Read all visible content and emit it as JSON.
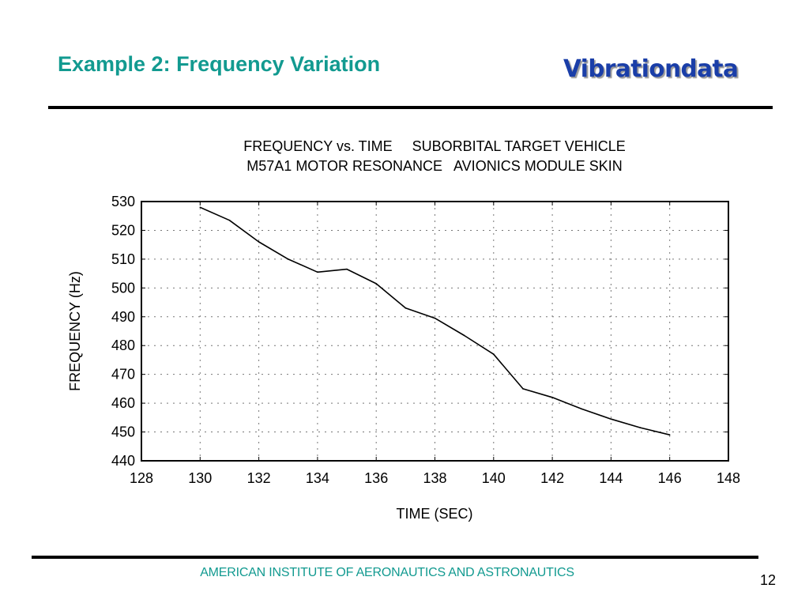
{
  "slide": {
    "title": "Example 2: Frequency Variation",
    "logo_text": "Vibrationdata",
    "footer_org": "AMERICAN INSTITUTE OF AERONAUTICS AND ASTRONAUTICS",
    "page_number": "12",
    "colors": {
      "title": "#129a90",
      "logo": "#1a3ea8",
      "footer": "#129a90"
    }
  },
  "chart_data": {
    "type": "line",
    "title_lines": [
      "FREQUENCY vs. TIME     SUBORBITAL TARGET VEHICLE",
      "M57A1 MOTOR RESONANCE   AVIONICS MODULE SKIN"
    ],
    "xlabel": "TIME (SEC)",
    "ylabel": "FREQUENCY (Hz)",
    "xlim": [
      128,
      148
    ],
    "ylim": [
      440,
      530
    ],
    "xticks": [
      128,
      130,
      132,
      134,
      136,
      138,
      140,
      142,
      144,
      146,
      148
    ],
    "yticks": [
      440,
      450,
      460,
      470,
      480,
      490,
      500,
      510,
      520,
      530
    ],
    "grid": true,
    "grid_style": "dotted",
    "legend": "none",
    "series": [
      {
        "name": "M57A1 motor resonance",
        "color": "#000000",
        "x": [
          130,
          131,
          132,
          133,
          134,
          135,
          136,
          137,
          138,
          139,
          140,
          141,
          142,
          143,
          144,
          145,
          146
        ],
        "y": [
          528,
          523.5,
          516,
          510,
          505.5,
          506.5,
          501.5,
          493,
          489.5,
          483.5,
          477,
          465,
          462,
          458,
          454.5,
          451.5,
          449
        ]
      }
    ]
  }
}
